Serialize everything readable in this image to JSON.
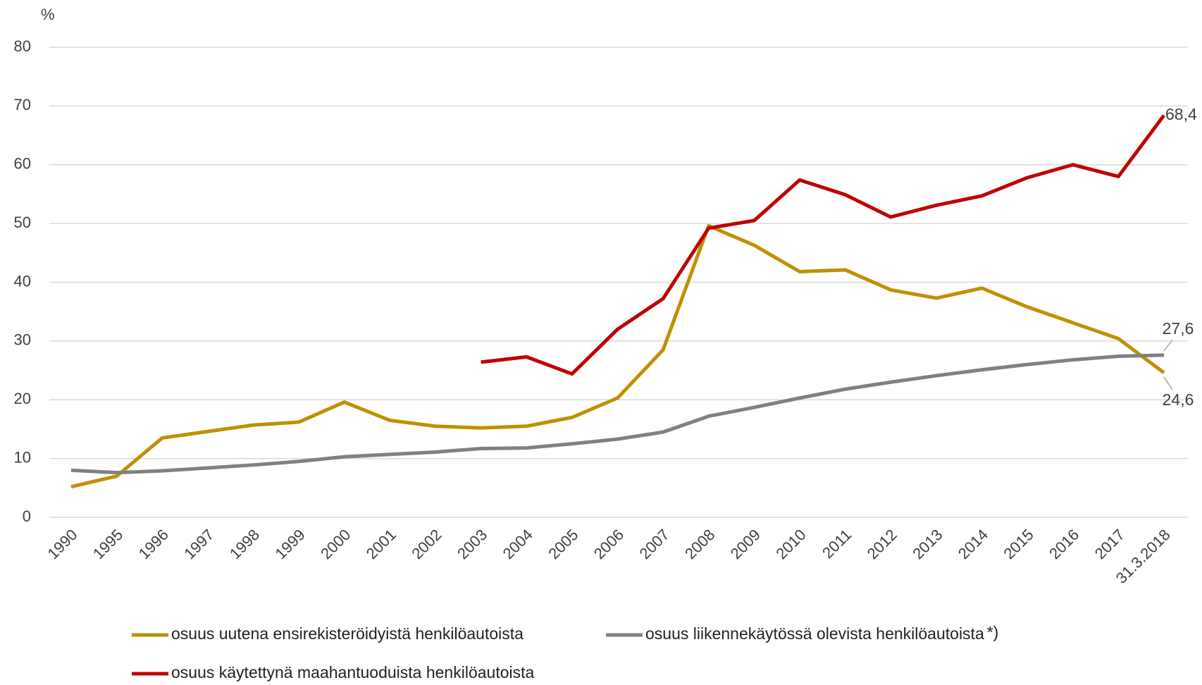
{
  "chart_data": {
    "type": "line",
    "y_label": "%",
    "categories": [
      "1990",
      "1995",
      "1996",
      "1997",
      "1998",
      "1999",
      "2000",
      "2001",
      "2002",
      "2003",
      "2004",
      "2005",
      "2006",
      "2007",
      "2008",
      "2009",
      "2010",
      "2011",
      "2012",
      "2013",
      "2014",
      "2015",
      "2016",
      "2017",
      "31.3.2018"
    ],
    "ylim": [
      0,
      80
    ],
    "yticks": [
      0,
      10,
      20,
      30,
      40,
      50,
      60,
      70,
      80
    ],
    "grid": true,
    "legend_position": "bottom",
    "legend_note": "*)",
    "series": [
      {
        "name": "osuus uutena ensirekisteröidyistä henkilöautoista",
        "color": "#bf9000",
        "values": [
          5.2,
          7.0,
          13.5,
          14.6,
          15.7,
          16.2,
          19.6,
          16.5,
          15.5,
          15.2,
          15.5,
          17.0,
          20.3,
          28.5,
          49.6,
          46.3,
          41.8,
          42.1,
          38.7,
          37.3,
          39.0,
          35.8,
          33.1,
          30.4,
          24.6
        ],
        "value_labels": [
          null,
          null,
          null,
          null,
          null,
          null,
          null,
          null,
          null,
          null,
          null,
          null,
          null,
          null,
          null,
          null,
          null,
          null,
          null,
          null,
          null,
          null,
          null,
          null,
          "24,6"
        ]
      },
      {
        "name": "osuus liikennekäytössä olevista henkilöautoista",
        "color": "#808080",
        "values": [
          8.0,
          7.6,
          7.9,
          8.4,
          8.9,
          9.5,
          10.3,
          10.7,
          11.1,
          11.7,
          11.8,
          12.5,
          13.3,
          14.5,
          17.2,
          18.7,
          20.3,
          21.8,
          23.0,
          24.1,
          25.1,
          26.0,
          26.8,
          27.4,
          27.6
        ],
        "value_labels": [
          null,
          null,
          null,
          null,
          null,
          null,
          null,
          null,
          null,
          null,
          null,
          null,
          null,
          null,
          null,
          null,
          null,
          null,
          null,
          null,
          null,
          null,
          null,
          null,
          "27,6"
        ]
      },
      {
        "name": "osuus käytettynä maahantuoduista henkilöautoista",
        "color": "#c00000",
        "values": [
          null,
          null,
          null,
          null,
          null,
          null,
          null,
          null,
          null,
          26.4,
          27.3,
          24.4,
          32.0,
          37.2,
          49.2,
          50.5,
          57.4,
          54.9,
          51.1,
          53.1,
          54.7,
          57.8,
          60.0,
          58.0,
          68.4
        ],
        "value_labels": [
          null,
          null,
          null,
          null,
          null,
          null,
          null,
          null,
          null,
          null,
          null,
          null,
          null,
          null,
          null,
          null,
          null,
          null,
          null,
          null,
          null,
          null,
          null,
          null,
          "68,4"
        ]
      }
    ]
  }
}
